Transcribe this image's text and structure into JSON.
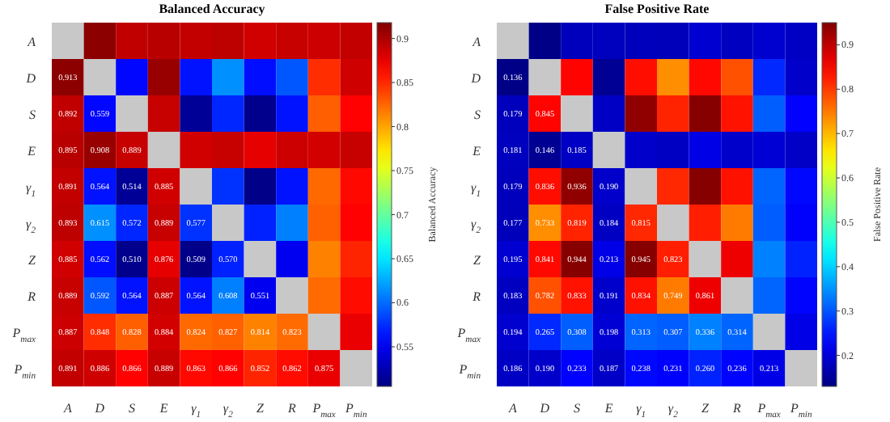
{
  "chart_data": [
    {
      "type": "heatmap",
      "title": "Balanced Accuracy",
      "clabel": "Balanced Accuracy",
      "categories": [
        "A",
        "D",
        "S",
        "E",
        "γ$_{1}$",
        "γ$_{2}$",
        "Z",
        "R",
        "P$_{max}$",
        "P$_{min}$"
      ],
      "y_categories": [
        "A",
        "D",
        "S",
        "E",
        "γ$_{1}$",
        "γ$_{2}$",
        "Z",
        "R",
        "P$_{max}$",
        "P$_{min}$"
      ],
      "cells": [
        [
          null,
          0.913,
          0.892,
          0.895,
          0.891,
          0.893,
          0.885,
          0.889,
          0.887,
          0.891
        ],
        [
          0.913,
          null,
          0.559,
          0.908,
          0.564,
          0.615,
          0.562,
          0.592,
          0.848,
          0.886
        ],
        [
          0.892,
          0.559,
          null,
          0.889,
          0.514,
          0.572,
          0.51,
          0.564,
          0.828,
          0.866
        ],
        [
          0.895,
          0.908,
          0.889,
          null,
          0.885,
          0.889,
          0.876,
          0.887,
          0.884,
          0.889
        ],
        [
          0.891,
          0.564,
          0.514,
          0.885,
          null,
          0.577,
          0.509,
          0.564,
          0.824,
          0.863
        ],
        [
          0.893,
          0.615,
          0.572,
          0.889,
          0.577,
          null,
          0.57,
          0.608,
          0.827,
          0.866
        ],
        [
          0.885,
          0.562,
          0.51,
          0.876,
          0.509,
          0.57,
          null,
          0.551,
          0.814,
          0.852
        ],
        [
          0.889,
          0.592,
          0.564,
          0.887,
          0.564,
          0.608,
          0.551,
          null,
          0.823,
          0.862
        ],
        [
          0.887,
          0.848,
          0.828,
          0.884,
          0.824,
          0.827,
          0.814,
          0.823,
          null,
          0.875
        ],
        [
          0.891,
          0.886,
          0.866,
          0.889,
          0.863,
          0.866,
          0.852,
          0.862,
          0.875,
          null
        ]
      ],
      "cell_labels": [
        [
          null,
          null,
          null,
          null,
          null,
          null,
          null,
          null,
          null,
          null
        ],
        [
          "0.913",
          null,
          null,
          null,
          null,
          null,
          null,
          null,
          null,
          null
        ],
        [
          "0.892",
          "0.559",
          null,
          null,
          null,
          null,
          null,
          null,
          null,
          null
        ],
        [
          "0.895",
          "0.908",
          "0.889",
          null,
          null,
          null,
          null,
          null,
          null,
          null
        ],
        [
          "0.891",
          "0.564",
          "0.514",
          "0.885",
          null,
          null,
          null,
          null,
          null,
          null
        ],
        [
          "0.893",
          "0.615",
          "0.572",
          "0.889",
          "0.577",
          null,
          null,
          null,
          null,
          null
        ],
        [
          "0.885",
          "0.562",
          "0.510",
          "0.876",
          "0.509",
          "0.570",
          null,
          null,
          null,
          null
        ],
        [
          "0.889",
          "0.592",
          "0.564",
          "0.887",
          "0.564",
          "0.608",
          "0.551",
          null,
          null,
          null
        ],
        [
          "0.887",
          "0.848",
          "0.828",
          "0.884",
          "0.824",
          "0.827",
          "0.814",
          "0.823",
          null,
          null
        ],
        [
          "0.891",
          "0.886",
          "0.866",
          "0.889",
          "0.863",
          "0.866",
          "0.852",
          "0.862",
          "0.875",
          null
        ]
      ],
      "clim": [
        0.505,
        0.918
      ],
      "cticks": [
        0.55,
        0.6,
        0.65,
        0.7,
        0.75,
        0.8,
        0.85,
        0.9
      ]
    },
    {
      "type": "heatmap",
      "title": "False Positive Rate",
      "clabel": "False Positive Rate",
      "categories": [
        "A",
        "D",
        "S",
        "E",
        "γ$_{1}$",
        "γ$_{2}$",
        "Z",
        "R",
        "P$_{max}$",
        "P$_{min}$"
      ],
      "y_categories": [
        "A",
        "D",
        "S",
        "E",
        "γ$_{1}$",
        "γ$_{2}$",
        "Z",
        "R",
        "P$_{max}$",
        "P$_{min}$"
      ],
      "cells": [
        [
          null,
          0.136,
          0.179,
          0.181,
          0.179,
          0.177,
          0.195,
          0.183,
          0.194,
          0.186
        ],
        [
          0.136,
          null,
          0.845,
          0.146,
          0.836,
          0.733,
          0.841,
          0.782,
          0.265,
          0.19
        ],
        [
          0.179,
          0.845,
          null,
          0.185,
          0.936,
          0.819,
          0.944,
          0.833,
          0.308,
          0.233
        ],
        [
          0.181,
          0.146,
          0.185,
          null,
          0.19,
          0.184,
          0.213,
          0.191,
          0.198,
          0.187
        ],
        [
          0.179,
          0.836,
          0.936,
          0.19,
          null,
          0.815,
          0.945,
          0.834,
          0.313,
          0.238
        ],
        [
          0.177,
          0.733,
          0.819,
          0.184,
          0.815,
          null,
          0.823,
          0.749,
          0.307,
          0.231
        ],
        [
          0.195,
          0.841,
          0.944,
          0.213,
          0.945,
          0.823,
          null,
          0.861,
          0.336,
          0.26
        ],
        [
          0.183,
          0.782,
          0.833,
          0.191,
          0.834,
          0.749,
          0.861,
          null,
          0.314,
          0.236
        ],
        [
          0.194,
          0.265,
          0.308,
          0.198,
          0.313,
          0.307,
          0.336,
          0.314,
          null,
          0.213
        ],
        [
          0.186,
          0.19,
          0.233,
          0.187,
          0.238,
          0.231,
          0.26,
          0.236,
          0.213,
          null
        ]
      ],
      "cell_labels": [
        [
          null,
          null,
          null,
          null,
          null,
          null,
          null,
          null,
          null,
          null
        ],
        [
          "0.136",
          null,
          null,
          null,
          null,
          null,
          null,
          null,
          null,
          null
        ],
        [
          "0.179",
          "0.845",
          null,
          null,
          null,
          null,
          null,
          null,
          null,
          null
        ],
        [
          "0.181",
          "0.146",
          "0.185",
          null,
          null,
          null,
          null,
          null,
          null,
          null
        ],
        [
          "0.179",
          "0.836",
          "0.936",
          "0.190",
          null,
          null,
          null,
          null,
          null,
          null
        ],
        [
          "0.177",
          "0.733",
          "0.819",
          "0.184",
          "0.815",
          null,
          null,
          null,
          null,
          null
        ],
        [
          "0.195",
          "0.841",
          "0.944",
          "0.213",
          "0.945",
          "0.823",
          null,
          null,
          null,
          null
        ],
        [
          "0.183",
          "0.782",
          "0.833",
          "0.191",
          "0.834",
          "0.749",
          "0.861",
          null,
          null,
          null
        ],
        [
          "0.194",
          "0.265",
          "0.308",
          "0.198",
          "0.313",
          "0.307",
          "0.336",
          "0.314",
          null,
          null
        ],
        [
          "0.186",
          "0.190",
          "0.233",
          "0.187",
          "0.238",
          "0.231",
          "0.260",
          "0.236",
          "0.213",
          null
        ]
      ],
      "clim": [
        0.13,
        0.95
      ],
      "cticks": [
        0.2,
        0.3,
        0.4,
        0.5,
        0.6,
        0.7,
        0.8,
        0.9
      ]
    }
  ]
}
